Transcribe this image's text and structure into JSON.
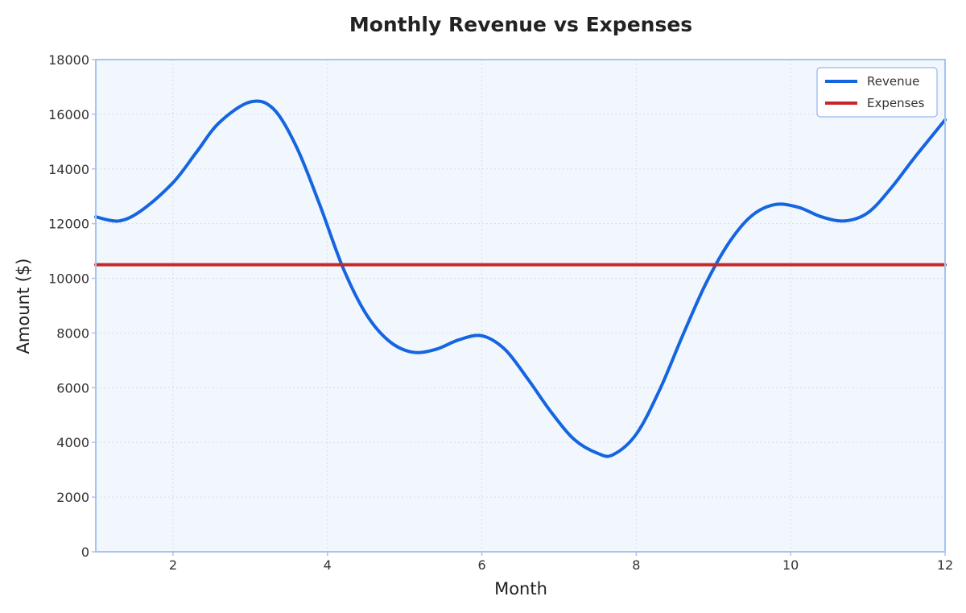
{
  "chart_data": {
    "type": "line",
    "title": "Monthly Revenue vs Expenses",
    "xlabel": "Month",
    "ylabel": "Amount ($)",
    "xlim": [
      1,
      12
    ],
    "ylim": [
      0,
      18000
    ],
    "xticks": [
      2,
      4,
      6,
      8,
      10,
      12
    ],
    "yticks": [
      0,
      2000,
      4000,
      6000,
      8000,
      10000,
      12000,
      14000,
      16000,
      18000
    ],
    "grid": true,
    "legend_position": "top-right",
    "plot_background": "#f2f7fe",
    "frame_color": "#a6c4f2",
    "series": [
      {
        "name": "Revenue",
        "color": "#1565e0",
        "points": [
          [
            1.0,
            12250
          ],
          [
            1.3,
            12100
          ],
          [
            1.6,
            12500
          ],
          [
            2.0,
            13500
          ],
          [
            2.3,
            14600
          ],
          [
            2.6,
            15700
          ],
          [
            3.0,
            16450
          ],
          [
            3.3,
            16200
          ],
          [
            3.6,
            14800
          ],
          [
            3.9,
            12700
          ],
          [
            4.2,
            10400
          ],
          [
            4.5,
            8700
          ],
          [
            4.8,
            7700
          ],
          [
            5.1,
            7300
          ],
          [
            5.4,
            7400
          ],
          [
            5.7,
            7750
          ],
          [
            6.0,
            7900
          ],
          [
            6.3,
            7400
          ],
          [
            6.6,
            6300
          ],
          [
            6.9,
            5100
          ],
          [
            7.2,
            4100
          ],
          [
            7.5,
            3600
          ],
          [
            7.7,
            3550
          ],
          [
            8.0,
            4300
          ],
          [
            8.3,
            5900
          ],
          [
            8.6,
            7900
          ],
          [
            8.9,
            9800
          ],
          [
            9.2,
            11300
          ],
          [
            9.5,
            12300
          ],
          [
            9.8,
            12700
          ],
          [
            10.1,
            12600
          ],
          [
            10.4,
            12250
          ],
          [
            10.7,
            12100
          ],
          [
            11.0,
            12400
          ],
          [
            11.3,
            13300
          ],
          [
            11.6,
            14400
          ],
          [
            12.0,
            15800
          ]
        ]
      },
      {
        "name": "Expenses",
        "color": "#c62828",
        "points": [
          [
            1.0,
            10500
          ],
          [
            12.0,
            10500
          ]
        ]
      }
    ]
  }
}
